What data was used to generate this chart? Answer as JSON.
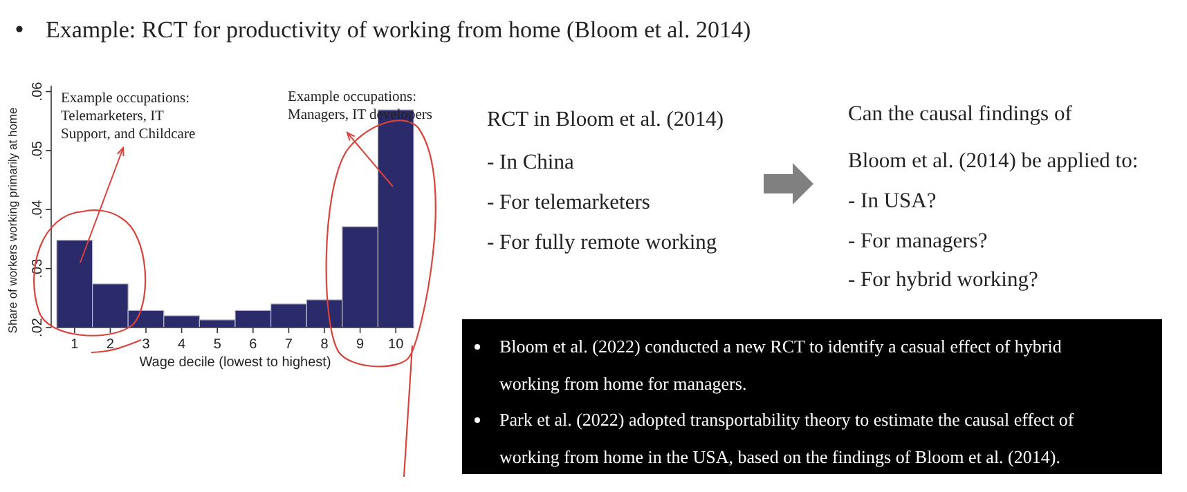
{
  "chart_data": {
    "type": "bar",
    "title": "Example: RCT for productivity of working from home (Bloom et al. 2014)",
    "xlabel": "Wage decile (lowest to highest)",
    "ylabel": "Share of workers working primarily at home",
    "categories": [
      "1",
      "2",
      "3",
      "4",
      "5",
      "6",
      "7",
      "8",
      "9",
      "10"
    ],
    "values": [
      0.0348,
      0.0274,
      0.0229,
      0.022,
      0.0213,
      0.0229,
      0.024,
      0.0247,
      0.0371,
      0.0569
    ],
    "color": "#2b2a6b",
    "ylim": [
      0.02,
      0.061
    ],
    "yticks": [
      {
        "value": 0.02,
        "label": ".02"
      },
      {
        "value": 0.03,
        "label": ".03"
      },
      {
        "value": 0.04,
        "label": ".04"
      },
      {
        "value": 0.05,
        "label": ".05"
      },
      {
        "value": 0.06,
        "label": ".06"
      }
    ],
    "grid": false,
    "annotations": [
      "Example occupations:\nTelemarketers, IT\nSupport, and Childcare",
      "Example occupations:\nManagers, IT developers",
      "RCT in Bloom et al. (2014)",
      "- In China",
      "- For telemarketers",
      "- For fully remote working",
      "Can the causal findings of",
      "Bloom et al. (2014) be applied to:",
      "- In USA?",
      "- For managers?",
      "- For hybrid working?",
      "Bloom et al. (2022) conducted a new RCT to identify a casual effect of hybrid\nworking from home for managers.",
      "Park et al. (2022) adopted transportability theory to estimate the causal effect of\nworking from home in the USA, based on the findings of Bloom et al. (2014)."
    ]
  }
}
